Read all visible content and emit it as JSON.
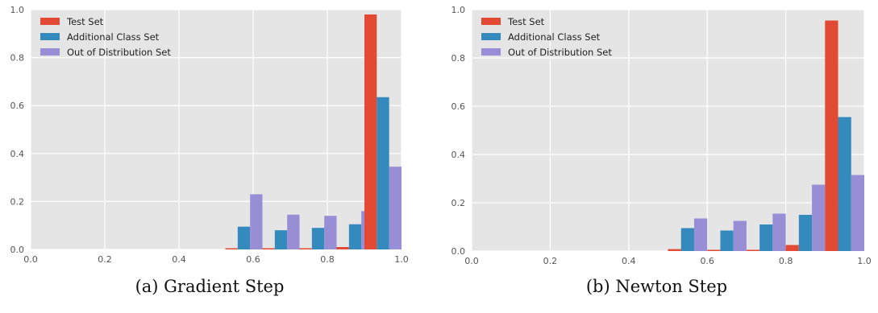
{
  "colors": {
    "background": "#e5e5e5",
    "grid": "#ffffff",
    "series": [
      "#e24a33",
      "#348abd",
      "#988ed5"
    ]
  },
  "chart_data": [
    {
      "type": "bar",
      "caption": "(a) Gradient Step",
      "xlim": [
        0.0,
        1.0
      ],
      "ylim": [
        0.0,
        1.0
      ],
      "xticks": [
        "0.0",
        "0.2",
        "0.4",
        "0.6",
        "0.8",
        "1.0"
      ],
      "yticks": [
        "0.0",
        "0.2",
        "0.4",
        "0.6",
        "0.8",
        "1.0"
      ],
      "grid": true,
      "legend_position": "top-left",
      "bin_centers": [
        0.575,
        0.675,
        0.775,
        0.875,
        0.95
      ],
      "bin_width": 0.1,
      "series": [
        {
          "name": "Test Set",
          "color": "#e24a33",
          "values": [
            0.005,
            0.005,
            0.005,
            0.01,
            0.98
          ]
        },
        {
          "name": "Additional Class Set",
          "color": "#348abd",
          "values": [
            0.095,
            0.08,
            0.09,
            0.105,
            0.635
          ]
        },
        {
          "name": "Out of Distribution Set",
          "color": "#988ed5",
          "values": [
            0.23,
            0.145,
            0.14,
            0.16,
            0.345
          ]
        }
      ]
    },
    {
      "type": "bar",
      "caption": "(b) Newton Step",
      "xlim": [
        0.0,
        1.0
      ],
      "ylim": [
        0.0,
        1.0
      ],
      "xticks": [
        "0.0",
        "0.2",
        "0.4",
        "0.6",
        "0.8",
        "1.0"
      ],
      "yticks": [
        "0.0",
        "0.2",
        "0.4",
        "0.6",
        "0.8",
        "1.0"
      ],
      "grid": true,
      "legend_position": "top-left",
      "bin_centers": [
        0.55,
        0.65,
        0.75,
        0.85,
        0.95
      ],
      "bin_width": 0.1,
      "series": [
        {
          "name": "Test Set",
          "color": "#e24a33",
          "values": [
            0.008,
            0.005,
            0.005,
            0.025,
            0.955
          ]
        },
        {
          "name": "Additional Class Set",
          "color": "#348abd",
          "values": [
            0.095,
            0.085,
            0.11,
            0.15,
            0.555
          ]
        },
        {
          "name": "Out of Distribution Set",
          "color": "#988ed5",
          "values": [
            0.135,
            0.125,
            0.155,
            0.275,
            0.315
          ]
        }
      ]
    }
  ]
}
